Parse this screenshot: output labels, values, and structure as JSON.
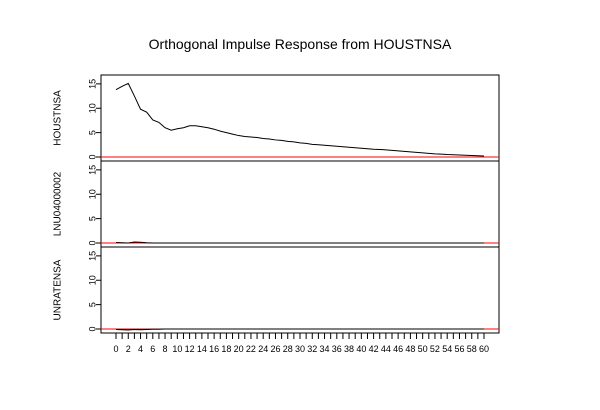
{
  "chart_data": {
    "type": "line",
    "title": "Orthogonal Impulse Response from HOUSTNSA",
    "x": [
      0,
      1,
      2,
      3,
      4,
      5,
      6,
      7,
      8,
      9,
      10,
      11,
      12,
      13,
      14,
      15,
      16,
      17,
      18,
      19,
      20,
      21,
      22,
      23,
      24,
      25,
      26,
      27,
      28,
      29,
      30,
      31,
      32,
      33,
      34,
      35,
      36,
      37,
      38,
      39,
      40,
      41,
      42,
      43,
      44,
      45,
      46,
      47,
      48,
      49,
      50,
      51,
      52,
      53,
      54,
      55,
      56,
      57,
      58,
      59,
      60
    ],
    "xlim": [
      0,
      60
    ],
    "x_ticks": [
      "0",
      "2",
      "4",
      "6",
      "8",
      "10",
      "12",
      "14",
      "16",
      "18",
      "20",
      "22",
      "24",
      "26",
      "28",
      "30",
      "32",
      "34",
      "36",
      "38",
      "40",
      "42",
      "44",
      "46",
      "48",
      "50",
      "52",
      "54",
      "56",
      "58",
      "60"
    ],
    "grid": false,
    "panels": [
      {
        "ylabel": "HOUSTNSA",
        "ylim": [
          0,
          16
        ],
        "y_ticks": [
          "0",
          "5",
          "10",
          "15"
        ],
        "zero_line_color": "#ff0000",
        "series": [
          {
            "color": "#000000",
            "values": [
              13.8,
              14.5,
              15.1,
              12.5,
              9.8,
              9.2,
              7.6,
              7.1,
              6.0,
              5.5,
              5.8,
              6.0,
              6.4,
              6.4,
              6.2,
              6.0,
              5.7,
              5.3,
              5.0,
              4.7,
              4.4,
              4.2,
              4.1,
              4.0,
              3.8,
              3.7,
              3.5,
              3.4,
              3.2,
              3.1,
              2.9,
              2.8,
              2.6,
              2.5,
              2.4,
              2.3,
              2.2,
              2.1,
              2.0,
              1.9,
              1.8,
              1.7,
              1.6,
              1.55,
              1.45,
              1.35,
              1.25,
              1.15,
              1.05,
              0.95,
              0.85,
              0.75,
              0.65,
              0.6,
              0.5,
              0.45,
              0.4,
              0.35,
              0.3,
              0.25,
              0.2
            ]
          }
        ]
      },
      {
        "ylabel": "LNU04000002",
        "ylim": [
          0,
          16
        ],
        "y_ticks": [
          "0",
          "5",
          "10",
          "15"
        ],
        "zero_line_color": "#ff0000",
        "series": [
          {
            "color": "#000000",
            "values": [
              0.1,
              0.05,
              0.0,
              0.2,
              0.15,
              0.05,
              0.0,
              0.0,
              0.0,
              0.0,
              0.0,
              0.0,
              0.0,
              0.0,
              0.0,
              0.0,
              0.0,
              0.0,
              0.0,
              0.0,
              0.0,
              0.0,
              0.0,
              0.0,
              0.0,
              0.0,
              0.0,
              0.0,
              0.0,
              0.0,
              0.0,
              0.0,
              0.0,
              0.0,
              0.0,
              0.0,
              0.0,
              0.0,
              0.0,
              0.0,
              0.0,
              0.0,
              0.0,
              0.0,
              0.0,
              0.0,
              0.0,
              0.0,
              0.0,
              0.0,
              0.0,
              0.0,
              0.0,
              0.0,
              0.0,
              0.0,
              0.0,
              0.0,
              0.0,
              0.0,
              0.0
            ]
          }
        ]
      },
      {
        "ylabel": "UNRATENSA",
        "ylim": [
          0,
          16
        ],
        "y_ticks": [
          "0",
          "5",
          "10",
          "15"
        ],
        "zero_line_color": "#ff0000",
        "series": [
          {
            "color": "#000000",
            "values": [
              -0.1,
              -0.15,
              -0.2,
              -0.1,
              -0.15,
              -0.1,
              -0.05,
              -0.05,
              0.0,
              0.0,
              0.0,
              0.0,
              0.0,
              0.0,
              0.0,
              0.0,
              0.0,
              0.0,
              0.0,
              0.0,
              0.0,
              0.0,
              0.0,
              0.0,
              0.0,
              0.0,
              0.0,
              0.0,
              0.0,
              0.0,
              0.0,
              0.0,
              0.0,
              0.0,
              0.0,
              0.0,
              0.0,
              0.0,
              0.0,
              0.0,
              0.0,
              0.0,
              0.0,
              0.0,
              0.0,
              0.0,
              0.0,
              0.0,
              0.0,
              0.0,
              0.0,
              0.0,
              0.0,
              0.0,
              0.0,
              0.0,
              0.0,
              0.0,
              0.0,
              0.0,
              0.0
            ]
          }
        ]
      }
    ]
  }
}
